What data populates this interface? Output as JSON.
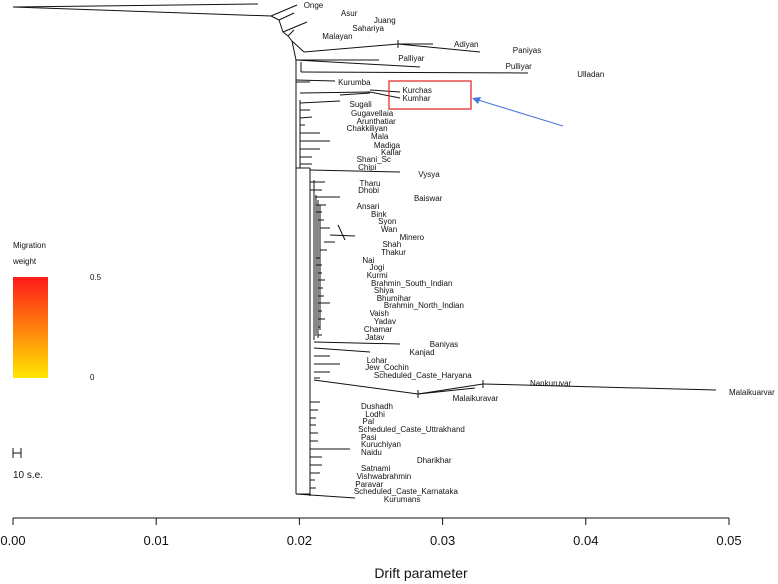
{
  "chart_data": {
    "type": "tree",
    "title": "",
    "xlabel": "Drift parameter",
    "ylabel": "",
    "xlim": [
      0,
      0.05
    ],
    "x_ticks": [
      "0.00",
      "0.01",
      "0.02",
      "0.03",
      "0.04",
      "0.05"
    ],
    "x_tick_values": [
      0,
      0.01,
      0.02,
      0.03,
      0.04,
      0.05
    ],
    "grid": false,
    "legend": {
      "title_line1": "Migration",
      "title_line2": "weight",
      "max_label": "0.5",
      "min_label": "0",
      "colors": {
        "max": "#ff1a1a",
        "min": "#ffe600"
      }
    },
    "scale": {
      "label": "10 s.e."
    },
    "highlight": {
      "labels": [
        "Kurchas",
        "Kumhar"
      ],
      "box_color": "#e53030",
      "arrow_color": "#4a78d6"
    },
    "branch_color": "#111111",
    "populations": [
      {
        "name": "Onge",
        "x": 0.0203
      },
      {
        "name": "Asur",
        "x": 0.0229
      },
      {
        "name": "Juang",
        "x": 0.0252
      },
      {
        "name": "Sahariya",
        "x": 0.0237
      },
      {
        "name": "Malayan",
        "x": 0.0216
      },
      {
        "name": "Adiyan",
        "x": 0.0308
      },
      {
        "name": "Paniyas",
        "x": 0.0349
      },
      {
        "name": "Palliyar",
        "x": 0.0269
      },
      {
        "name": "Pulliyar",
        "x": 0.0344
      },
      {
        "name": "Ulladan",
        "x": 0.0394
      },
      {
        "name": "Kurumba",
        "x": 0.0227
      },
      {
        "name": "Kurchas",
        "x": 0.0272
      },
      {
        "name": "Kumhar",
        "x": 0.0272
      },
      {
        "name": "Sugali",
        "x": 0.0235
      },
      {
        "name": "Gugavellaia",
        "x": 0.0236
      },
      {
        "name": "Arunthatiar",
        "x": 0.024
      },
      {
        "name": "Chakkiliyan",
        "x": 0.0233
      },
      {
        "name": "Mala",
        "x": 0.025
      },
      {
        "name": "Madiga",
        "x": 0.0252
      },
      {
        "name": "Kallar",
        "x": 0.0257
      },
      {
        "name": "Shani_Sc",
        "x": 0.024
      },
      {
        "name": "Chipi",
        "x": 0.0241
      },
      {
        "name": "Vysya",
        "x": 0.0283
      },
      {
        "name": "Tharu",
        "x": 0.0242
      },
      {
        "name": "Dhobi",
        "x": 0.0241
      },
      {
        "name": "Baiswar",
        "x": 0.028
      },
      {
        "name": "Ansari",
        "x": 0.024
      },
      {
        "name": "Bink",
        "x": 0.025
      },
      {
        "name": "Syon",
        "x": 0.0255
      },
      {
        "name": "Wan",
        "x": 0.0257
      },
      {
        "name": "Minero",
        "x": 0.027
      },
      {
        "name": "Shah",
        "x": 0.0258
      },
      {
        "name": "Thakur",
        "x": 0.0257
      },
      {
        "name": "Nai",
        "x": 0.0244
      },
      {
        "name": "Jogi",
        "x": 0.0249
      },
      {
        "name": "Kurmi",
        "x": 0.0247
      },
      {
        "name": "Brahmin_South_Indian",
        "x": 0.025
      },
      {
        "name": "Shiya",
        "x": 0.0252
      },
      {
        "name": "Bhumihar",
        "x": 0.0254
      },
      {
        "name": "Brahmin_North_Indian",
        "x": 0.0259
      },
      {
        "name": "Vaish",
        "x": 0.0249
      },
      {
        "name": "Yadav",
        "x": 0.0252
      },
      {
        "name": "Chamar",
        "x": 0.0245
      },
      {
        "name": "Jatav",
        "x": 0.0246
      },
      {
        "name": "Baniyas",
        "x": 0.0291
      },
      {
        "name": "Kanjad",
        "x": 0.0277
      },
      {
        "name": "Lohar",
        "x": 0.0247
      },
      {
        "name": "Jew_Cochin",
        "x": 0.0246
      },
      {
        "name": "Scheduled_Caste_Haryana",
        "x": 0.0252
      },
      {
        "name": "Nankuruvar",
        "x": 0.0361
      },
      {
        "name": "Malaikuarvar",
        "x": 0.05
      },
      {
        "name": "Malaikuravar",
        "x": 0.0307
      },
      {
        "name": "Dushadh",
        "x": 0.0243
      },
      {
        "name": "Lodhi",
        "x": 0.0246
      },
      {
        "name": "Pal",
        "x": 0.0244
      },
      {
        "name": "Scheduled_Caste_Uttrakhand",
        "x": 0.0241
      },
      {
        "name": "Pasi",
        "x": 0.0243
      },
      {
        "name": "Kuruchiyan",
        "x": 0.0243
      },
      {
        "name": "Naidu",
        "x": 0.0243
      },
      {
        "name": "Dharikhar",
        "x": 0.0282
      },
      {
        "name": "Satnami",
        "x": 0.0243
      },
      {
        "name": "Vishwabrahmin",
        "x": 0.024
      },
      {
        "name": "Paravar",
        "x": 0.0239
      },
      {
        "name": "Scheduled_Caste_Karnataka",
        "x": 0.0238
      },
      {
        "name": "Kurumans",
        "x": 0.0259
      }
    ]
  }
}
